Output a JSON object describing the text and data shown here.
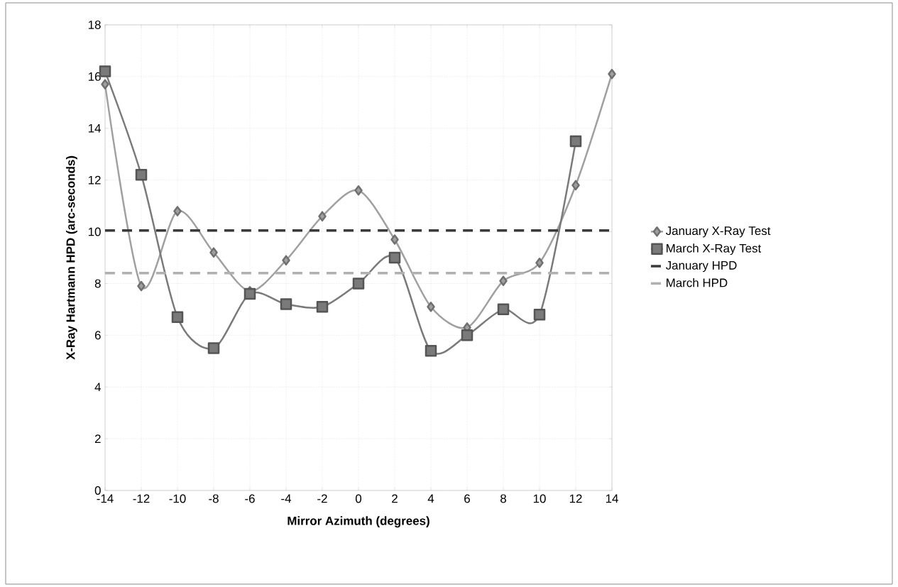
{
  "chart_data": {
    "type": "line",
    "xlabel": "Mirror Azimuth (degrees)",
    "ylabel": "X-Ray Hartmann HPD (arc-seconds)",
    "xlim": [
      -14,
      14
    ],
    "ylim": [
      0,
      18
    ],
    "xticks": [
      -14,
      -12,
      -10,
      -8,
      -6,
      -4,
      -2,
      0,
      2,
      4,
      6,
      8,
      10,
      12,
      14
    ],
    "yticks": [
      0,
      2,
      4,
      6,
      8,
      10,
      12,
      14,
      16,
      18
    ],
    "grid": true,
    "legend": "right",
    "series": [
      {
        "name": "January X-Ray Test",
        "color": "#a0a0a0",
        "marker": "diamond",
        "line_style": "solid",
        "x": [
          -14,
          -12,
          -10,
          -8,
          -6,
          -4,
          -2,
          0,
          2,
          4,
          6,
          8,
          10,
          12,
          14
        ],
        "values": [
          15.7,
          7.9,
          10.8,
          9.2,
          7.7,
          8.9,
          10.6,
          11.6,
          9.7,
          7.1,
          6.3,
          8.1,
          8.8,
          11.8,
          16.1
        ]
      },
      {
        "name": "March X-Ray Test",
        "color": "#7a7a7a",
        "marker": "square",
        "line_style": "solid",
        "x": [
          -14,
          -12,
          -10,
          -8,
          -6,
          -4,
          -2,
          0,
          2,
          4,
          6,
          8,
          10,
          12
        ],
        "values": [
          16.2,
          12.2,
          6.7,
          5.5,
          7.6,
          7.2,
          7.1,
          8.0,
          9.0,
          5.4,
          6.0,
          7.0,
          6.8,
          13.5
        ]
      },
      {
        "name": "January HPD",
        "color": "#3a3a3a",
        "marker": "none",
        "line_style": "dashed",
        "x": [
          -14,
          14
        ],
        "values": [
          10.05,
          10.05
        ]
      },
      {
        "name": "March HPD",
        "color": "#b0b0b0",
        "marker": "none",
        "line_style": "dashed",
        "x": [
          -14,
          14
        ],
        "values": [
          8.4,
          8.4
        ]
      }
    ]
  }
}
